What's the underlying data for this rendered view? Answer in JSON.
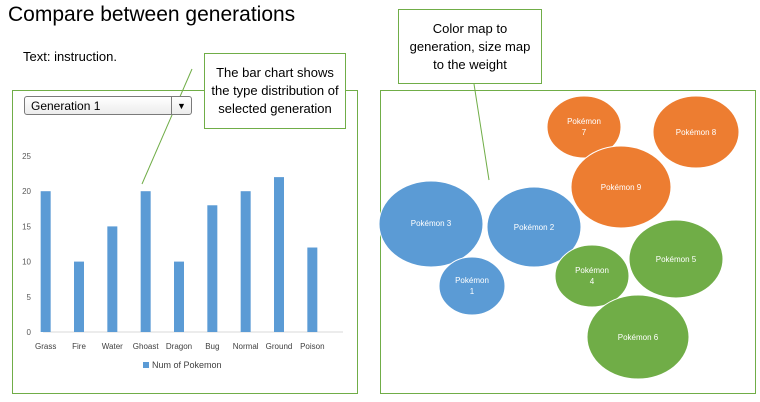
{
  "title": "Compare between generations",
  "instruction": "Text: instruction.",
  "dropdown": {
    "selected": "Generation 1"
  },
  "callouts": {
    "bar_chart_note": "The bar chart shows the type distribution of selected generation",
    "bubble_note": "Color map to generation, size map to the weight"
  },
  "chart_data": {
    "type": "bar",
    "categories": [
      "Grass",
      "Fire",
      "Water",
      "Ghoast",
      "Dragon",
      "Bug",
      "Normal",
      "Ground",
      "Poison"
    ],
    "series": [
      {
        "name": "Num of Pokemon",
        "values": [
          20,
          10,
          15,
          20,
          10,
          18,
          20,
          22,
          12
        ],
        "color": "#5b9bd5"
      }
    ],
    "yticks": [
      0,
      5,
      10,
      15,
      20,
      25
    ],
    "ylim": [
      0,
      25
    ],
    "grid": false,
    "legend": "bottom"
  },
  "bubbles": {
    "colors": {
      "blue": "#5b9bd5",
      "orange": "#ed7d31",
      "green": "#70ad47"
    },
    "items": [
      {
        "label": "Pokémon 7",
        "color": "orange"
      },
      {
        "label": "Pokémon 8",
        "color": "orange"
      },
      {
        "label": "Pokémon 9",
        "color": "orange"
      },
      {
        "label": "Pokémon 3",
        "color": "blue"
      },
      {
        "label": "Pokémon 2",
        "color": "blue"
      },
      {
        "label": "Pokémon 1",
        "color": "blue"
      },
      {
        "label": "Pokémon 4",
        "color": "green"
      },
      {
        "label": "Pokémon 5",
        "color": "green"
      },
      {
        "label": "Pokémon 6",
        "color": "green"
      }
    ]
  }
}
